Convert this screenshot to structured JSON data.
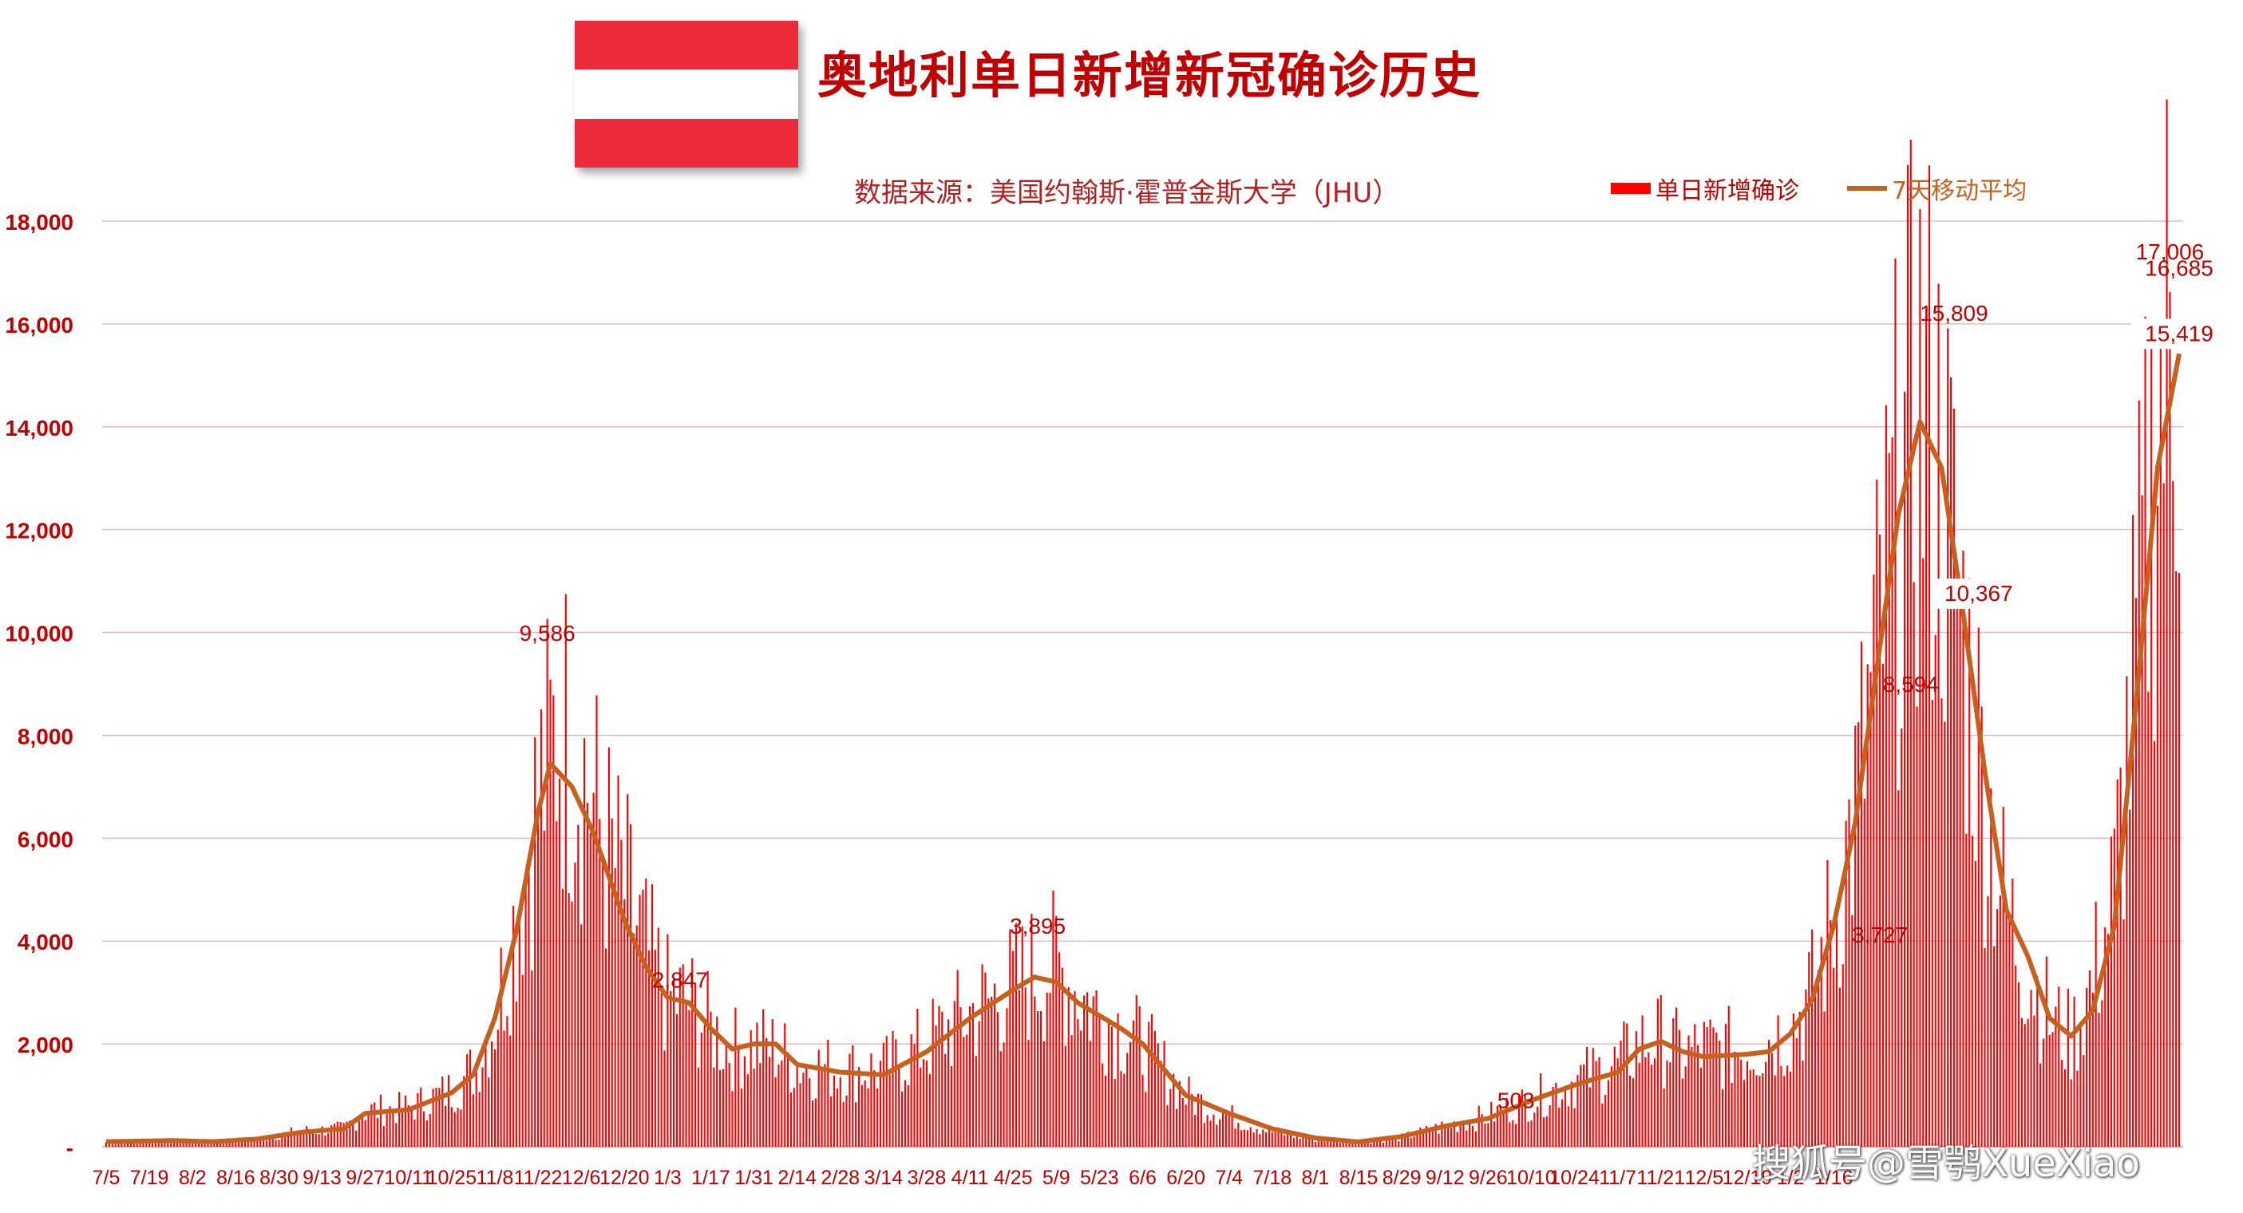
{
  "header": {
    "title": "奥地利单日新增新冠确诊历史",
    "subtitle": "数据来源：美国约翰斯·霍普金斯大学（JHU）",
    "flag_colors": [
      "#ee2b3b",
      "#ffffff",
      "#ee2b3b"
    ]
  },
  "legend": {
    "bar_label": "单日新增确诊",
    "line_label": "7天移动平均"
  },
  "watermark": "搜狐号@雪鹗XueXiao",
  "chart_data": {
    "type": "bar",
    "title": "奥地利单日新增新冠确诊历史",
    "xlabel": "",
    "ylabel": "",
    "ylim": [
      0,
      18000
    ],
    "yticks": [
      0,
      2000,
      4000,
      6000,
      8000,
      10000,
      12000,
      14000,
      16000,
      18000
    ],
    "ytick_labels": [
      "-",
      "2,000",
      "4,000",
      "6,000",
      "8,000",
      "10,000",
      "12,000",
      "14,000",
      "16,000",
      "18,000"
    ],
    "grid": true,
    "legend_position": "top-right",
    "bar_color": "#ff0000",
    "line_color": "#c5601e",
    "x_tick_labels": [
      "7/5",
      "7/19",
      "8/2",
      "8/16",
      "8/30",
      "9/13",
      "9/27",
      "10/11",
      "10/25",
      "11/8",
      "11/22",
      "12/6",
      "12/20",
      "1/3",
      "1/17",
      "1/31",
      "2/14",
      "2/28",
      "3/14",
      "3/28",
      "4/11",
      "4/25",
      "5/9",
      "5/23",
      "6/6",
      "6/20",
      "7/4",
      "7/18",
      "8/1",
      "8/15",
      "8/29",
      "9/12",
      "9/26",
      "10/10",
      "10/24",
      "11/7",
      "11/21",
      "12/5",
      "12/19",
      "1/2",
      "1/16"
    ],
    "x_tick_step_days": 14,
    "series": [
      {
        "name": "单日新增确诊",
        "kind": "bar",
        "anchors": [
          [
            0,
            90
          ],
          [
            21,
            120
          ],
          [
            35,
            100
          ],
          [
            49,
            150
          ],
          [
            63,
            300
          ],
          [
            77,
            350
          ],
          [
            84,
            700
          ],
          [
            98,
            750
          ],
          [
            112,
            1100
          ],
          [
            119,
            1500
          ],
          [
            126,
            2500
          ],
          [
            133,
            4500
          ],
          [
            140,
            6800
          ],
          [
            147,
            8200
          ],
          [
            154,
            7500
          ],
          [
            161,
            6000
          ],
          [
            168,
            5000
          ],
          [
            175,
            3800
          ],
          [
            182,
            2900
          ],
          [
            189,
            2800
          ],
          [
            196,
            2300
          ],
          [
            203,
            1900
          ],
          [
            210,
            2000
          ],
          [
            217,
            1900
          ],
          [
            224,
            1600
          ],
          [
            238,
            1500
          ],
          [
            252,
            1500
          ],
          [
            266,
            2000
          ],
          [
            280,
            2600
          ],
          [
            294,
            3100
          ],
          [
            301,
            3400
          ],
          [
            308,
            3500
          ],
          [
            315,
            3000
          ],
          [
            322,
            2600
          ],
          [
            329,
            2300
          ],
          [
            336,
            2000
          ],
          [
            343,
            1500
          ],
          [
            350,
            1000
          ],
          [
            364,
            600
          ],
          [
            378,
            300
          ],
          [
            392,
            150
          ],
          [
            406,
            90
          ],
          [
            420,
            180
          ],
          [
            434,
            400
          ],
          [
            448,
            600
          ],
          [
            462,
            900
          ],
          [
            476,
            1300
          ],
          [
            490,
            1600
          ],
          [
            497,
            2000
          ],
          [
            504,
            2100
          ],
          [
            511,
            1800
          ],
          [
            518,
            1900
          ],
          [
            532,
            1900
          ],
          [
            546,
            2300
          ],
          [
            553,
            3000
          ],
          [
            560,
            4500
          ],
          [
            567,
            6500
          ],
          [
            574,
            9500
          ],
          [
            581,
            12500
          ],
          [
            588,
            14500
          ],
          [
            595,
            13000
          ],
          [
            602,
            10000
          ],
          [
            609,
            7000
          ],
          [
            616,
            4500
          ],
          [
            623,
            3500
          ],
          [
            630,
            2500
          ],
          [
            637,
            2100
          ],
          [
            644,
            3200
          ],
          [
            651,
            5000
          ],
          [
            658,
            9500
          ],
          [
            665,
            14500
          ],
          [
            672,
            16500
          ]
        ]
      },
      {
        "name": "7天移动平均",
        "kind": "line",
        "anchors": [
          [
            0,
            100
          ],
          [
            21,
            120
          ],
          [
            35,
            100
          ],
          [
            49,
            150
          ],
          [
            63,
            280
          ],
          [
            77,
            350
          ],
          [
            84,
            650
          ],
          [
            98,
            720
          ],
          [
            112,
            1050
          ],
          [
            119,
            1400
          ],
          [
            126,
            2500
          ],
          [
            133,
            4200
          ],
          [
            140,
            6500
          ],
          [
            144,
            7450
          ],
          [
            151,
            7000
          ],
          [
            158,
            6100
          ],
          [
            168,
            4400
          ],
          [
            175,
            3500
          ],
          [
            182,
            2900
          ],
          [
            189,
            2800
          ],
          [
            196,
            2300
          ],
          [
            203,
            1900
          ],
          [
            210,
            2000
          ],
          [
            217,
            2000
          ],
          [
            224,
            1600
          ],
          [
            238,
            1450
          ],
          [
            252,
            1400
          ],
          [
            266,
            1850
          ],
          [
            280,
            2500
          ],
          [
            294,
            3050
          ],
          [
            301,
            3300
          ],
          [
            308,
            3200
          ],
          [
            315,
            2800
          ],
          [
            322,
            2550
          ],
          [
            329,
            2300
          ],
          [
            336,
            2000
          ],
          [
            343,
            1500
          ],
          [
            350,
            1000
          ],
          [
            364,
            650
          ],
          [
            378,
            350
          ],
          [
            392,
            170
          ],
          [
            406,
            95
          ],
          [
            420,
            200
          ],
          [
            434,
            400
          ],
          [
            448,
            550
          ],
          [
            462,
            900
          ],
          [
            476,
            1200
          ],
          [
            490,
            1450
          ],
          [
            497,
            1900
          ],
          [
            504,
            2050
          ],
          [
            511,
            1850
          ],
          [
            518,
            1750
          ],
          [
            532,
            1800
          ],
          [
            539,
            1850
          ],
          [
            546,
            2200
          ],
          [
            553,
            2850
          ],
          [
            560,
            4300
          ],
          [
            567,
            6300
          ],
          [
            574,
            9300
          ],
          [
            581,
            12300
          ],
          [
            588,
            14100
          ],
          [
            595,
            13200
          ],
          [
            602,
            10367
          ],
          [
            609,
            7300
          ],
          [
            616,
            4600
          ],
          [
            623,
            3700
          ],
          [
            630,
            2500
          ],
          [
            637,
            2150
          ],
          [
            644,
            2650
          ],
          [
            651,
            4300
          ],
          [
            658,
            8600
          ],
          [
            665,
            13200
          ],
          [
            672,
            15419
          ]
        ]
      }
    ],
    "peak_labels": [
      {
        "day": 143,
        "value": 9586,
        "text": "9,586"
      },
      {
        "day": 186,
        "value": 2847,
        "text": "2,847"
      },
      {
        "day": 302,
        "value": 3895,
        "text": "3,895"
      },
      {
        "day": 457,
        "value": 503,
        "text": "503"
      },
      {
        "day": 575,
        "value": 3727,
        "text": "3,727"
      },
      {
        "day": 585,
        "value": 8594,
        "text": "8,594"
      },
      {
        "day": 599,
        "value": 15809,
        "text": "15,809"
      },
      {
        "day": 607,
        "value": 10367,
        "text": "10,367",
        "boxed": true
      },
      {
        "day": 669,
        "value": 17006,
        "text": "17,006"
      },
      {
        "day": 672,
        "value": 16685,
        "text": "16,685"
      },
      {
        "day": 672,
        "value": 15419,
        "text": "15,419",
        "boxed": true
      }
    ]
  }
}
